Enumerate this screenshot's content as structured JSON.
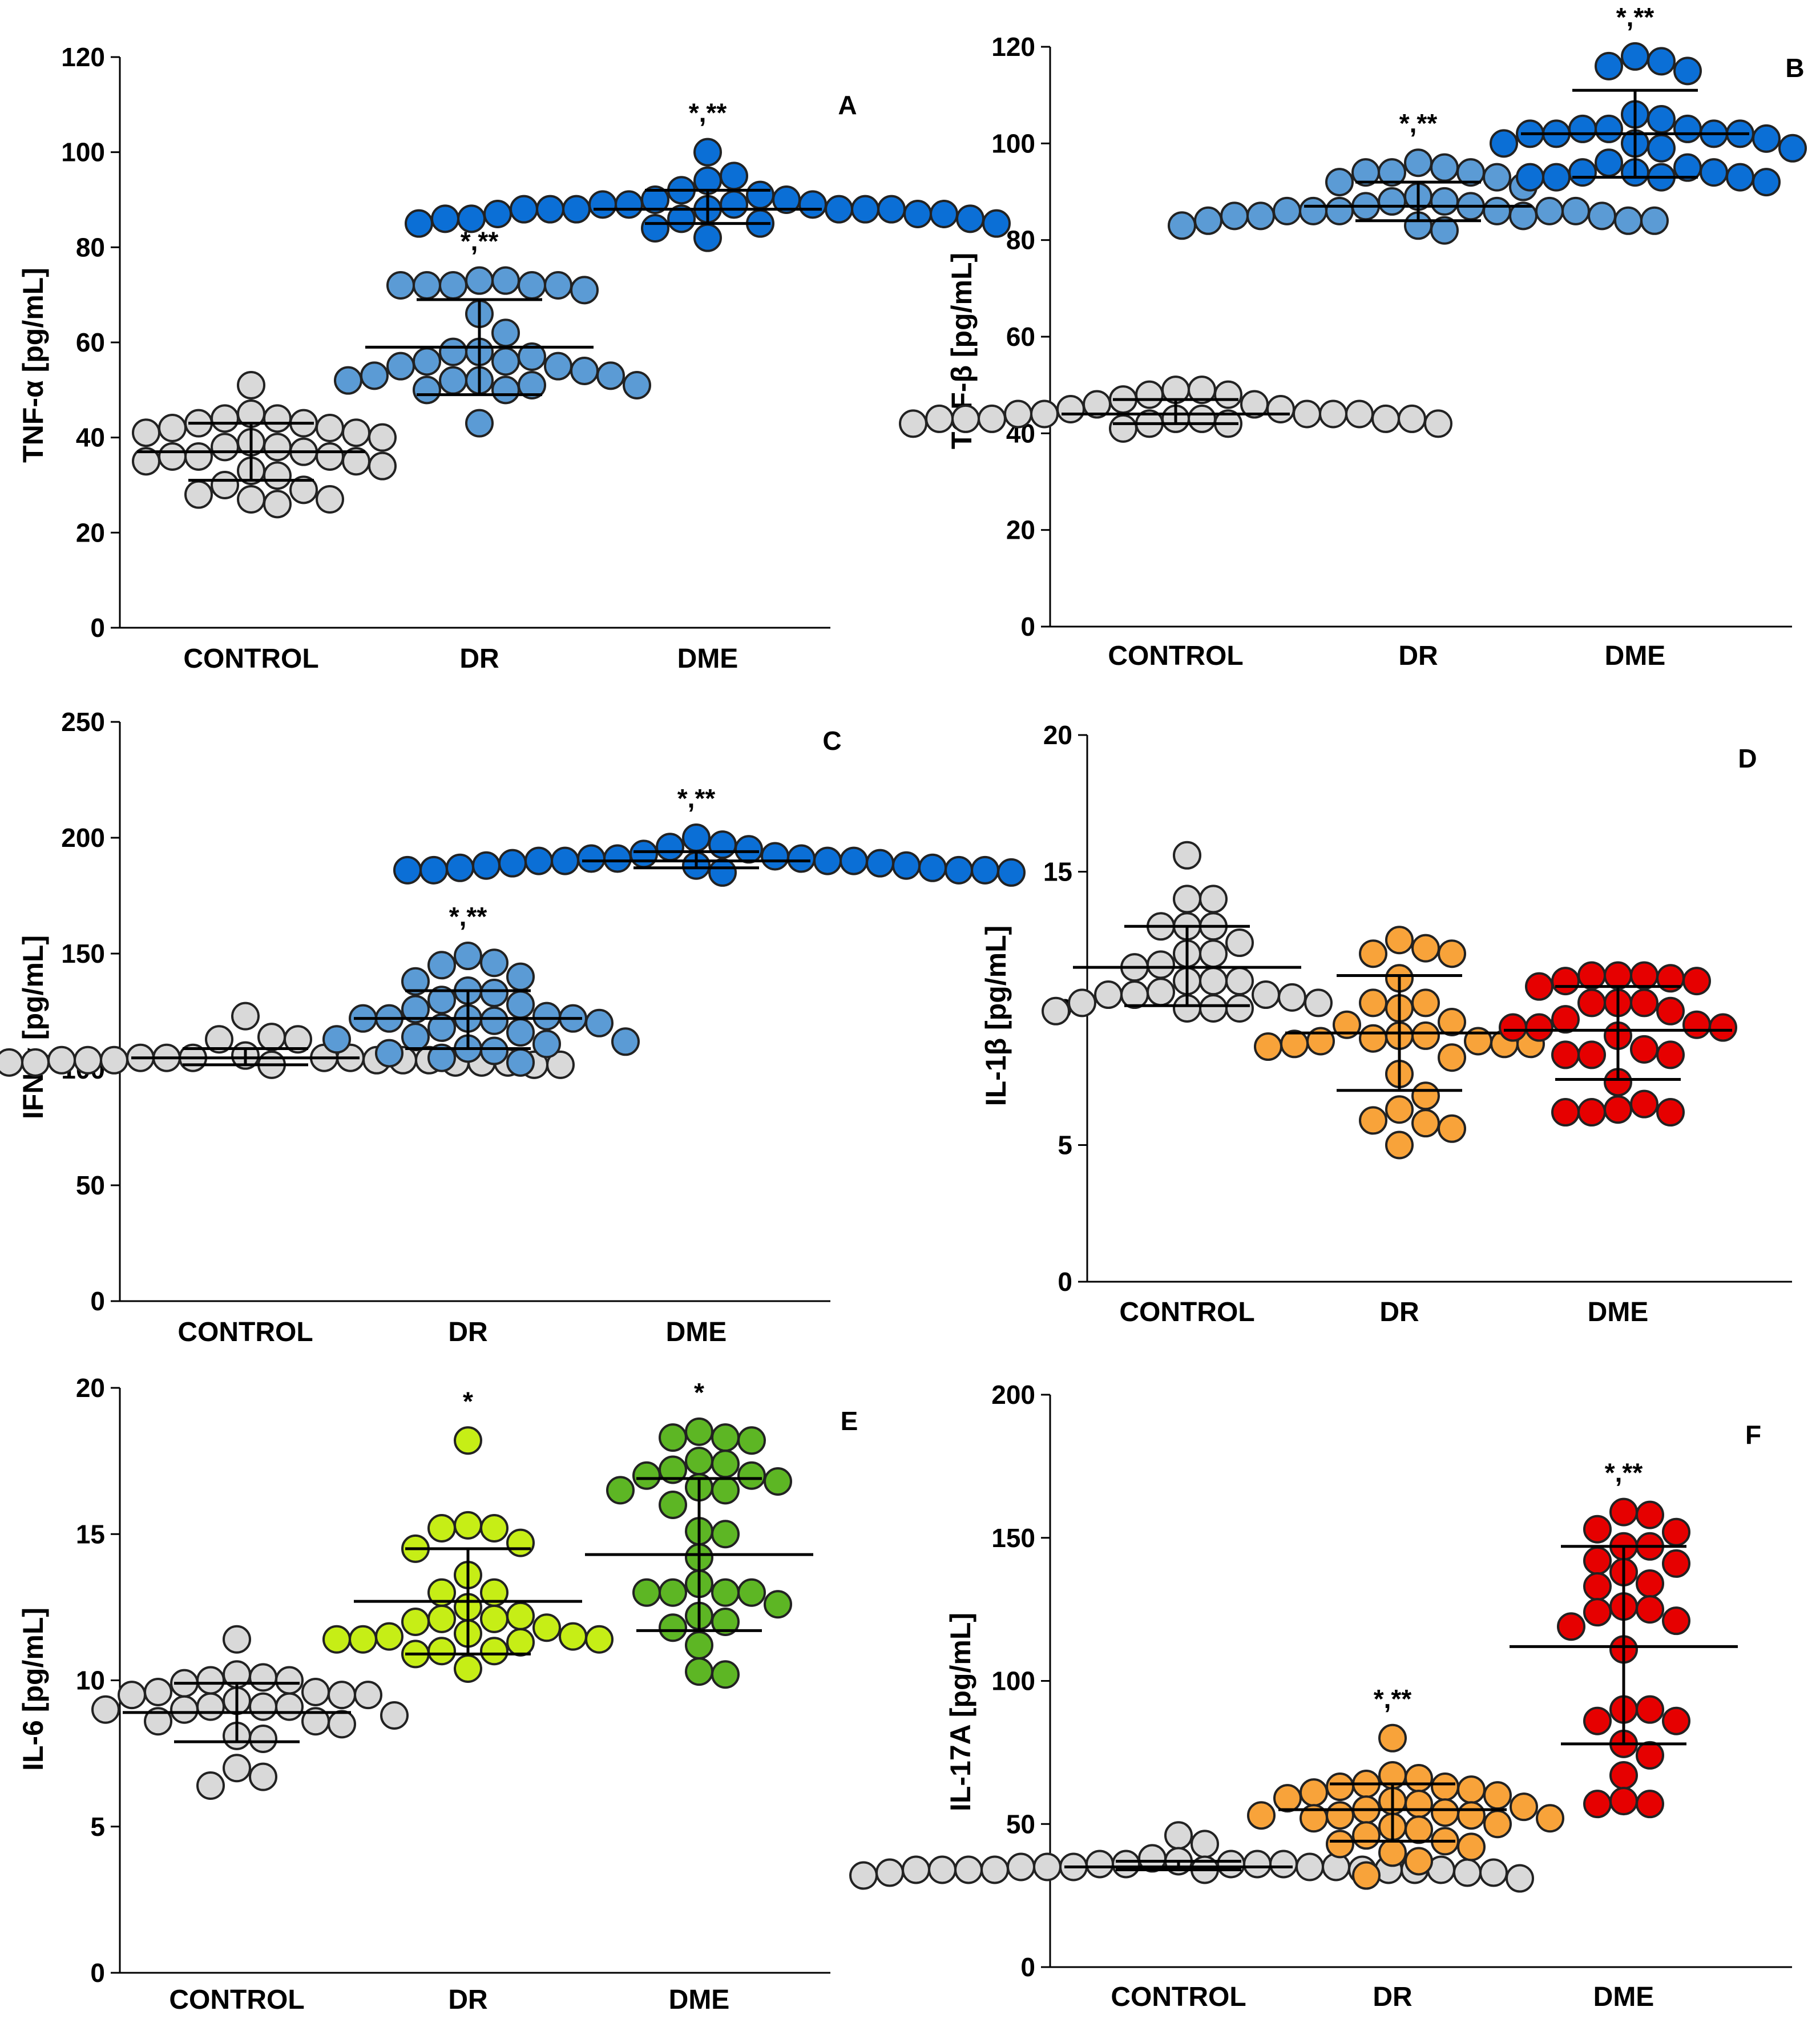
{
  "colors": {
    "control": "#d9d9d9",
    "dr_blue": "#5b9bd5",
    "dme_blue": "#0b6fd6",
    "dr_orange": "#f8a33a",
    "dme_red": "#e60000",
    "dr_lime": "#c6ee16",
    "dme_green": "#5db624"
  },
  "chart_data": [
    {
      "id": "A",
      "type": "scatter",
      "panel_label": "A",
      "ylabel": "TNF-α [pg/mL]",
      "ylim": [
        0,
        120
      ],
      "yticks": [
        "0",
        "20",
        "40",
        "60",
        "80",
        "100",
        "120"
      ],
      "categories": [
        "CONTROL",
        "DR",
        "DME"
      ],
      "series": [
        {
          "name": "CONTROL",
          "color": "control",
          "mean": 37,
          "sd_low": 31,
          "sd_high": 43,
          "sig": "",
          "values": [
            51,
            45,
            44,
            44,
            43,
            43,
            42,
            42,
            41,
            41,
            40,
            39,
            38,
            38,
            37,
            36,
            36,
            36,
            35,
            35,
            34,
            33,
            32,
            30,
            29,
            28,
            27,
            27,
            26
          ]
        },
        {
          "name": "DR",
          "color": "dr_blue",
          "mean": 59,
          "sd_low": 49,
          "sd_high": 69,
          "sig": "*,**",
          "values": [
            73,
            73,
            72,
            72,
            72,
            72,
            72,
            71,
            66,
            62,
            58,
            58,
            57,
            56,
            56,
            55,
            55,
            54,
            53,
            53,
            52,
            52,
            52,
            51,
            51,
            50,
            50,
            43
          ]
        },
        {
          "name": "DME",
          "color": "dme_blue",
          "mean": 88,
          "sd_low": 85,
          "sd_high": 92,
          "sig": "*,**",
          "values": [
            100,
            95,
            94,
            92,
            91,
            90,
            90,
            89,
            89,
            89,
            89,
            88,
            88,
            88,
            88,
            88,
            88,
            88,
            87,
            87,
            87,
            86,
            86,
            86,
            86,
            85,
            85,
            85,
            84,
            82
          ]
        }
      ]
    },
    {
      "id": "B",
      "type": "scatter",
      "panel_label": "B",
      "ylabel": "TGF-β [pg/mL]",
      "ylim": [
        0,
        120
      ],
      "yticks": [
        "0",
        "20",
        "40",
        "60",
        "80",
        "100",
        "120"
      ],
      "categories": [
        "CONTROL",
        "DR",
        "DME"
      ],
      "series": [
        {
          "name": "CONTROL",
          "color": "control",
          "mean": 44,
          "sd_low": 42,
          "sd_high": 47,
          "sig": "",
          "values": [
            49,
            49,
            48,
            48,
            47,
            46,
            46,
            45,
            45,
            44,
            44,
            44,
            44,
            44,
            43,
            43,
            43,
            43,
            43,
            43,
            43,
            42,
            42,
            42,
            42,
            41
          ]
        },
        {
          "name": "DR",
          "color": "dr_blue",
          "mean": 87,
          "sd_low": 84,
          "sd_high": 92,
          "sig": "*,**",
          "values": [
            96,
            95,
            94,
            94,
            94,
            93,
            92,
            91,
            89,
            88,
            88,
            87,
            87,
            86,
            86,
            86,
            86,
            86,
            86,
            85,
            85,
            85,
            85,
            84,
            84,
            84,
            83,
            83,
            82
          ]
        },
        {
          "name": "DME",
          "color": "dme_blue",
          "mean": 102,
          "sd_low": 93,
          "sd_high": 111,
          "sig": "*,**",
          "values": [
            118,
            117,
            116,
            115,
            106,
            105,
            103,
            103,
            103,
            102,
            102,
            102,
            102,
            101,
            100,
            100,
            99,
            99,
            96,
            95,
            94,
            94,
            94,
            93,
            93,
            93,
            93,
            92
          ]
        }
      ]
    },
    {
      "id": "C",
      "type": "scatter",
      "panel_label": "C",
      "ylabel": "IFN-γ [pg/mL]",
      "ylim": [
        0,
        250
      ],
      "yticks": [
        "0",
        "50",
        "100",
        "150",
        "200",
        "250"
      ],
      "categories": [
        "CONTROL",
        "DR",
        "DME"
      ],
      "series": [
        {
          "name": "CONTROL",
          "color": "control",
          "mean": 105,
          "sd_low": 102,
          "sd_high": 109,
          "sig": "",
          "values": [
            123,
            114,
            113,
            113,
            106,
            105,
            105,
            105,
            105,
            105,
            104,
            104,
            104,
            104,
            104,
            104,
            103,
            103,
            103,
            103,
            103,
            103,
            102,
            102,
            102,
            102
          ]
        },
        {
          "name": "DR",
          "color": "dr_blue",
          "mean": 122,
          "sd_low": 109,
          "sd_high": 134,
          "sig": "*,**",
          "values": [
            149,
            146,
            145,
            140,
            138,
            134,
            133,
            130,
            128,
            126,
            123,
            122,
            122,
            122,
            122,
            121,
            120,
            118,
            116,
            114,
            113,
            112,
            111,
            109,
            108,
            107,
            105,
            103
          ]
        },
        {
          "name": "DME",
          "color": "dme_blue",
          "mean": 190,
          "sd_low": 187,
          "sd_high": 194,
          "sig": "*,**",
          "values": [
            200,
            197,
            196,
            195,
            193,
            192,
            191,
            191,
            191,
            190,
            190,
            190,
            190,
            189,
            189,
            188,
            188,
            188,
            187,
            187,
            186,
            186,
            186,
            186,
            185,
            185
          ]
        }
      ]
    },
    {
      "id": "D",
      "type": "scatter",
      "panel_label": "D",
      "ylabel": "IL-1β [pg/mL]",
      "ylim": [
        0,
        20
      ],
      "yticks": [
        "0",
        "5",
        "10",
        "15",
        "20"
      ],
      "categories": [
        "CONTROL",
        "DR",
        "DME"
      ],
      "series": [
        {
          "name": "CONTROL",
          "color": "control",
          "mean": 11.5,
          "sd_low": 10.1,
          "sd_high": 13.0,
          "sig": "",
          "values": [
            15.6,
            14.0,
            14.0,
            13.0,
            13.0,
            13.0,
            12.4,
            12.0,
            12.0,
            11.6,
            11.5,
            11.0,
            11.0,
            11.0,
            10.6,
            10.5,
            10.5,
            10.5,
            10.4,
            10.2,
            10.2,
            10.0,
            10.0,
            10.0,
            9.9
          ]
        },
        {
          "name": "DR",
          "color": "dr_orange",
          "mean": 9.1,
          "sd_low": 7.0,
          "sd_high": 11.2,
          "sig": "",
          "values": [
            12.5,
            12.2,
            12.0,
            12.0,
            11.1,
            10.2,
            10.2,
            10.0,
            9.5,
            9.4,
            9.0,
            9.0,
            8.9,
            8.8,
            8.8,
            8.7,
            8.7,
            8.7,
            8.6,
            8.2,
            7.6,
            6.8,
            6.3,
            5.9,
            5.8,
            5.6,
            5.0
          ]
        },
        {
          "name": "DME",
          "color": "dme_red",
          "mean": 9.2,
          "sd_low": 7.4,
          "sd_high": 10.8,
          "sig": "",
          "values": [
            11.2,
            11.2,
            11.2,
            11.1,
            11.0,
            11.0,
            10.8,
            10.2,
            10.2,
            10.2,
            9.9,
            9.6,
            9.4,
            9.3,
            9.3,
            9.3,
            9.0,
            8.5,
            8.3,
            8.3,
            8.3,
            7.3,
            6.5,
            6.3,
            6.2,
            6.2,
            6.2
          ]
        }
      ]
    },
    {
      "id": "E",
      "type": "scatter",
      "panel_label": "E",
      "ylabel": "IL-6 [pg/mL]",
      "ylim": [
        0,
        20
      ],
      "yticks": [
        "0",
        "5",
        "10",
        "15",
        "20"
      ],
      "categories": [
        "CONTROL",
        "DR",
        "DME"
      ],
      "series": [
        {
          "name": "CONTROL",
          "color": "control",
          "mean": 8.9,
          "sd_low": 7.9,
          "sd_high": 9.9,
          "sig": "",
          "values": [
            11.4,
            10.2,
            10.1,
            10.0,
            10.0,
            9.9,
            9.6,
            9.6,
            9.5,
            9.5,
            9.5,
            9.3,
            9.1,
            9.1,
            9.1,
            9.0,
            9.0,
            8.8,
            8.6,
            8.6,
            8.5,
            8.1,
            8.0,
            7.0,
            6.7,
            6.4
          ]
        },
        {
          "name": "DR",
          "color": "dr_lime",
          "mean": 12.7,
          "sd_low": 10.9,
          "sd_high": 14.5,
          "sig": "*",
          "values": [
            18.2,
            15.3,
            15.2,
            15.2,
            14.7,
            14.5,
            13.6,
            13.0,
            13.0,
            12.5,
            12.2,
            12.1,
            12.1,
            12.0,
            11.8,
            11.6,
            11.5,
            11.5,
            11.4,
            11.4,
            11.4,
            11.3,
            11.0,
            11.0,
            10.9,
            10.4
          ]
        },
        {
          "name": "DME",
          "color": "dme_green",
          "mean": 14.3,
          "sd_low": 11.7,
          "sd_high": 16.9,
          "sig": "*",
          "values": [
            18.5,
            18.3,
            18.3,
            18.2,
            17.5,
            17.4,
            17.2,
            17.0,
            17.0,
            16.8,
            16.6,
            16.5,
            16.5,
            16.0,
            15.1,
            15.0,
            14.2,
            13.3,
            13.0,
            13.0,
            13.0,
            13.0,
            12.6,
            12.2,
            12.0,
            11.8,
            11.2,
            10.3,
            10.2
          ]
        }
      ]
    },
    {
      "id": "F",
      "type": "scatter",
      "panel_label": "F",
      "ylabel": "IL-17A [pg/mL]",
      "ylim": [
        0,
        200
      ],
      "yticks": [
        "0",
        "50",
        "100",
        "150",
        "200"
      ],
      "categories": [
        "CONTROL",
        "DR",
        "DME"
      ],
      "series": [
        {
          "name": "CONTROL",
          "color": "control",
          "mean": 35,
          "sd_low": 34,
          "sd_high": 37,
          "sig": "",
          "values": [
            46,
            43,
            38,
            37,
            36,
            36,
            36,
            36,
            36,
            35,
            35,
            35,
            35,
            35,
            34,
            34,
            34,
            34,
            34,
            34,
            34,
            34,
            34,
            33,
            33,
            33,
            32,
            31
          ]
        },
        {
          "name": "DR",
          "color": "dr_orange",
          "mean": 55,
          "sd_low": 44,
          "sd_high": 64,
          "sig": "*,**",
          "values": [
            80,
            67,
            66,
            64,
            63,
            63,
            62,
            61,
            60,
            59,
            58,
            57,
            56,
            55,
            54,
            53,
            53,
            53,
            52,
            52,
            50,
            49,
            48,
            46,
            44,
            43,
            42,
            40,
            37,
            32
          ]
        },
        {
          "name": "DME",
          "color": "dme_red",
          "mean": 112,
          "sd_low": 78,
          "sd_high": 147,
          "sig": "*,**",
          "values": [
            159,
            158,
            153,
            152,
            147,
            147,
            142,
            141,
            138,
            134,
            133,
            126,
            125,
            124,
            121,
            119,
            111,
            90,
            90,
            86,
            86,
            78,
            74,
            67,
            58,
            57,
            57
          ]
        }
      ]
    }
  ]
}
